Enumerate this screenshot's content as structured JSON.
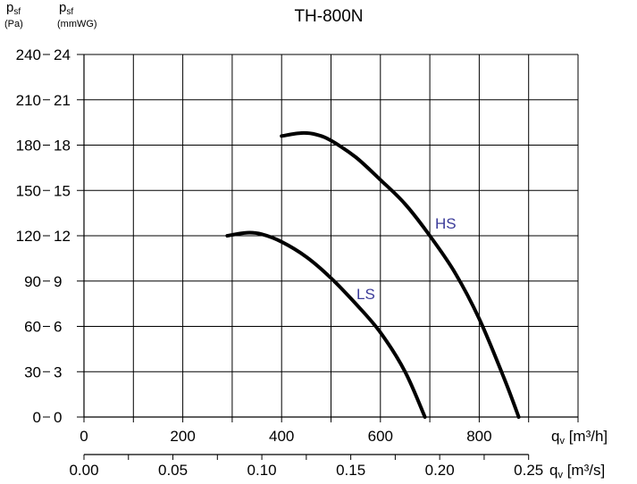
{
  "chart_data": {
    "type": "line",
    "title": "TH-800N",
    "y_axes": [
      {
        "label_main": "p",
        "label_sub": "sf",
        "unit": "(Pa)",
        "ticks": [
          0,
          30,
          60,
          90,
          120,
          150,
          180,
          210,
          240
        ]
      },
      {
        "label_main": "p",
        "label_sub": "sf",
        "unit": "(mmWG)",
        "ticks": [
          0,
          3,
          6,
          9,
          12,
          15,
          18,
          21,
          24
        ]
      }
    ],
    "x_axes": [
      {
        "label_main": "q",
        "label_sub": "v",
        "unit": "[m³/h]",
        "tick_values": [
          0,
          200,
          400,
          600,
          800
        ],
        "tick_labels": [
          "0",
          "200",
          "400",
          "600",
          "800"
        ]
      },
      {
        "label_main": "q",
        "label_sub": "v",
        "unit": "[m³/s]",
        "tick_values": [
          0,
          0.05,
          0.1,
          0.15,
          0.2,
          0.25
        ],
        "tick_labels": [
          "0.00",
          "0.05",
          "0.10",
          "0.15",
          "0.20",
          "0.25"
        ]
      }
    ],
    "xlim": [
      0,
      1000
    ],
    "ylim": [
      0,
      240
    ],
    "grid": true,
    "series": [
      {
        "name": "HS",
        "color": "#3b3b99",
        "x": [
          400,
          440,
          470,
          500,
          550,
          600,
          650,
          700,
          750,
          800,
          850,
          880
        ],
        "y": [
          186,
          188,
          187,
          183,
          172,
          157,
          141,
          120,
          96,
          65,
          26,
          0
        ]
      },
      {
        "name": "LS",
        "color": "#3b3b99",
        "x": [
          290,
          330,
          360,
          400,
          450,
          500,
          550,
          600,
          650,
          690
        ],
        "y": [
          120,
          122,
          121,
          116,
          106,
          92,
          75,
          56,
          30,
          0
        ]
      }
    ]
  }
}
